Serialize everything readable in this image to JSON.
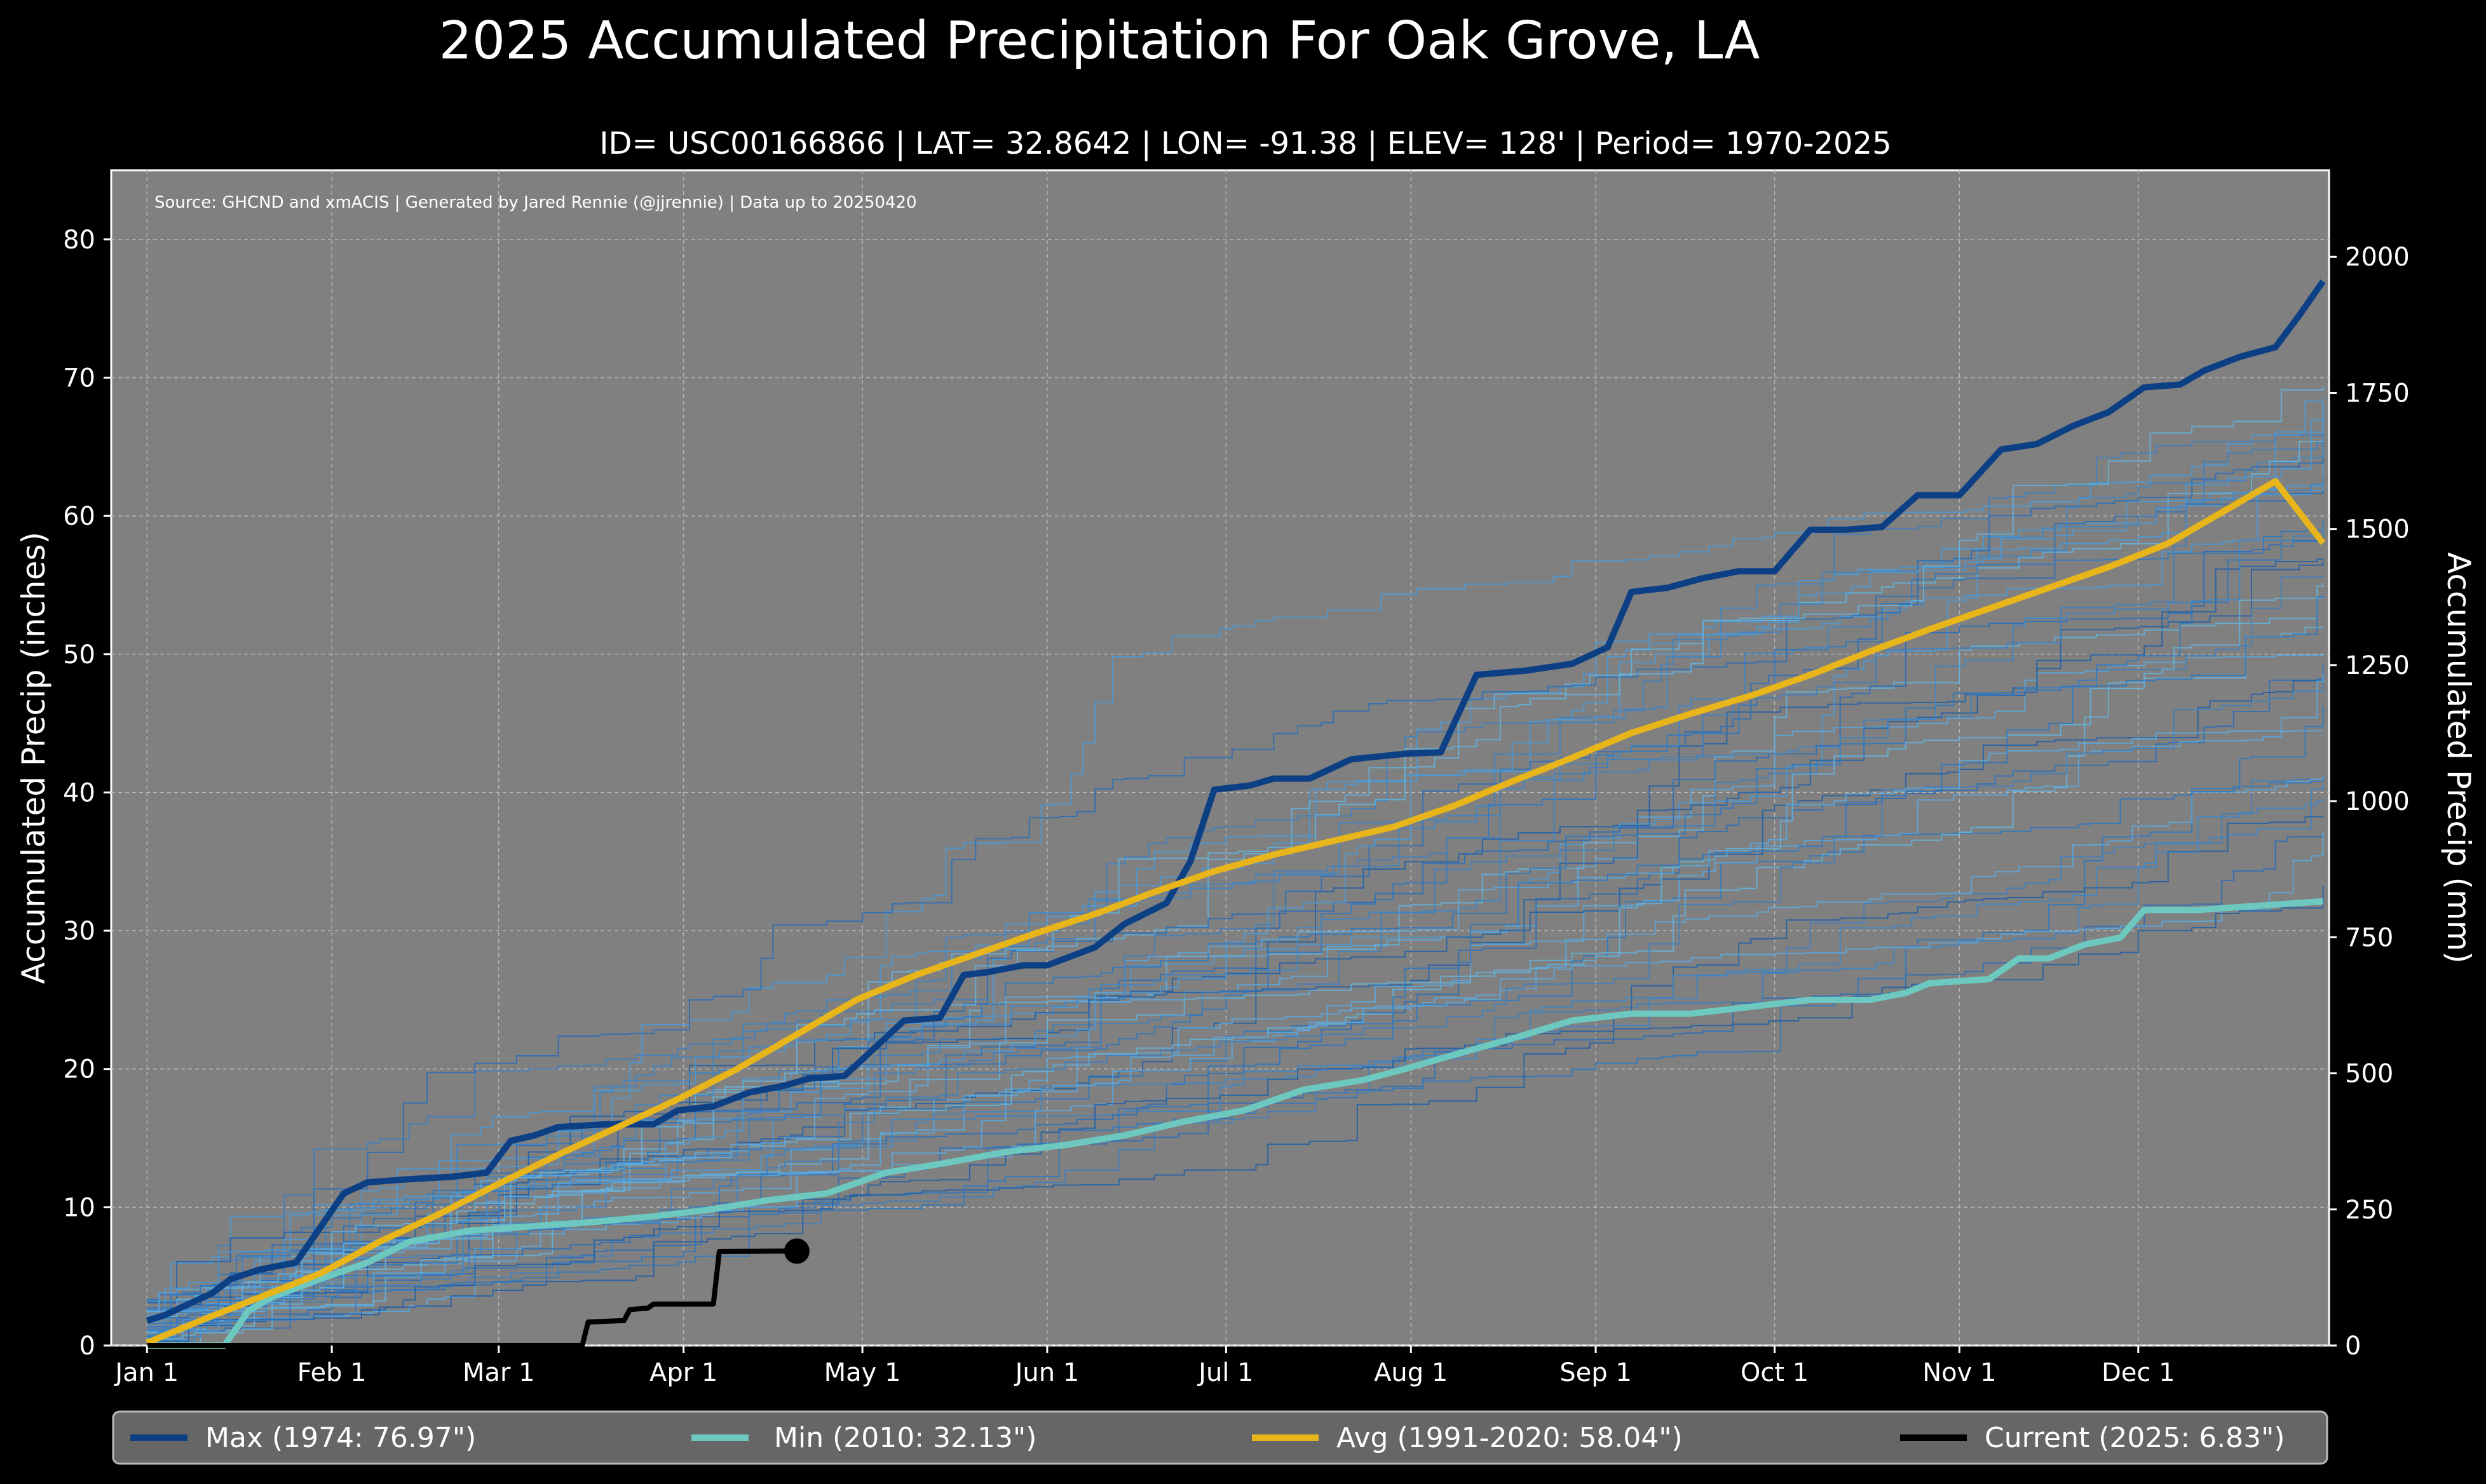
{
  "chart_data": {
    "type": "line",
    "title": "2025 Accumulated Precipitation For Oak Grove, LA",
    "subtitle": "ID= USC00166866 | LAT= 32.8642 | LON= -91.38 | ELEV= 128' | Period= 1970-2025",
    "source_note": "Source: GHCND and xmACIS | Generated by Jared Rennie (@jjrennie) | Data up to 20250420",
    "ylabel": "Accumulated Precip (inches)",
    "ylabel_right": "Accumulated Precip (mm)",
    "ylim": [
      0,
      85
    ],
    "ylim_right_mm": [
      0,
      2159
    ],
    "xlim_day_of_year": [
      -5,
      367
    ],
    "y_ticks": [
      0,
      10,
      20,
      30,
      40,
      50,
      60,
      70,
      80
    ],
    "y_ticks_right": [
      0,
      250,
      500,
      750,
      1000,
      1250,
      1500,
      1750,
      2000
    ],
    "x_ticks": [
      {
        "label": "Jan 1",
        "day": 1
      },
      {
        "label": "Feb 1",
        "day": 32
      },
      {
        "label": "Mar 1",
        "day": 60
      },
      {
        "label": "Apr 1",
        "day": 91
      },
      {
        "label": "May 1",
        "day": 121
      },
      {
        "label": "Jun 1",
        "day": 152
      },
      {
        "label": "Jul 1",
        "day": 182
      },
      {
        "label": "Aug 1",
        "day": 213
      },
      {
        "label": "Sep 1",
        "day": 244
      },
      {
        "label": "Oct 1",
        "day": 274
      },
      {
        "label": "Nov 1",
        "day": 305
      },
      {
        "label": "Dec 1",
        "day": 335
      }
    ],
    "grid": true,
    "background_years_count": 40,
    "series": [
      {
        "name": "Max",
        "legend": "Max (1974:  76.97\")",
        "color": "#0d3f85",
        "total": 76.97,
        "points": [
          [
            1,
            1.8
          ],
          [
            4,
            2.2
          ],
          [
            8,
            3.0
          ],
          [
            12,
            3.8
          ],
          [
            15,
            4.8
          ],
          [
            20,
            5.5
          ],
          [
            26,
            6.0
          ],
          [
            30,
            8.5
          ],
          [
            34,
            11.0
          ],
          [
            38,
            11.8
          ],
          [
            44,
            12.0
          ],
          [
            52,
            12.2
          ],
          [
            58,
            12.5
          ],
          [
            62,
            14.8
          ],
          [
            66,
            15.2
          ],
          [
            70,
            15.8
          ],
          [
            78,
            16.0
          ],
          [
            86,
            16.0
          ],
          [
            90,
            17.0
          ],
          [
            96,
            17.3
          ],
          [
            102,
            18.3
          ],
          [
            108,
            18.8
          ],
          [
            112,
            19.3
          ],
          [
            118,
            19.5
          ],
          [
            128,
            23.5
          ],
          [
            134,
            23.7
          ],
          [
            138,
            26.8
          ],
          [
            142,
            27.0
          ],
          [
            148,
            27.5
          ],
          [
            152,
            27.5
          ],
          [
            160,
            28.8
          ],
          [
            165,
            30.5
          ],
          [
            172,
            32.0
          ],
          [
            176,
            35.0
          ],
          [
            180,
            40.2
          ],
          [
            186,
            40.5
          ],
          [
            190,
            41.0
          ],
          [
            196,
            41.0
          ],
          [
            203,
            42.4
          ],
          [
            212,
            42.8
          ],
          [
            218,
            42.9
          ],
          [
            224,
            48.5
          ],
          [
            232,
            48.8
          ],
          [
            240,
            49.3
          ],
          [
            246,
            50.5
          ],
          [
            250,
            54.5
          ],
          [
            256,
            54.8
          ],
          [
            262,
            55.5
          ],
          [
            268,
            56.0
          ],
          [
            274,
            56.0
          ],
          [
            280,
            59.0
          ],
          [
            286,
            59.0
          ],
          [
            292,
            59.2
          ],
          [
            298,
            61.5
          ],
          [
            305,
            61.5
          ],
          [
            312,
            64.8
          ],
          [
            318,
            65.2
          ],
          [
            324,
            66.5
          ],
          [
            330,
            67.5
          ],
          [
            336,
            69.3
          ],
          [
            342,
            69.5
          ],
          [
            346,
            70.5
          ],
          [
            352,
            71.5
          ],
          [
            358,
            72.2
          ],
          [
            362,
            74.5
          ],
          [
            366,
            76.97
          ]
        ]
      },
      {
        "name": "Min",
        "legend": "Min (2010:  32.13\")",
        "color": "#6dc8c0",
        "total": 32.13,
        "points": [
          [
            1,
            0.0
          ],
          [
            8,
            0.0
          ],
          [
            14,
            0.0
          ],
          [
            18,
            2.5
          ],
          [
            22,
            3.5
          ],
          [
            30,
            4.8
          ],
          [
            38,
            6.0
          ],
          [
            45,
            7.5
          ],
          [
            55,
            8.3
          ],
          [
            65,
            8.6
          ],
          [
            75,
            8.9
          ],
          [
            85,
            9.3
          ],
          [
            95,
            9.8
          ],
          [
            105,
            10.5
          ],
          [
            115,
            11.0
          ],
          [
            125,
            12.5
          ],
          [
            135,
            13.2
          ],
          [
            145,
            14.0
          ],
          [
            155,
            14.5
          ],
          [
            165,
            15.2
          ],
          [
            175,
            16.2
          ],
          [
            185,
            17.0
          ],
          [
            195,
            18.5
          ],
          [
            205,
            19.2
          ],
          [
            212,
            20.0
          ],
          [
            220,
            21.0
          ],
          [
            230,
            22.2
          ],
          [
            240,
            23.5
          ],
          [
            250,
            24.0
          ],
          [
            260,
            24.0
          ],
          [
            270,
            24.5
          ],
          [
            280,
            25.0
          ],
          [
            290,
            25.0
          ],
          [
            296,
            25.5
          ],
          [
            300,
            26.2
          ],
          [
            310,
            26.5
          ],
          [
            315,
            28.0
          ],
          [
            320,
            28.0
          ],
          [
            326,
            29.0
          ],
          [
            332,
            29.5
          ],
          [
            336,
            31.5
          ],
          [
            345,
            31.5
          ],
          [
            355,
            31.8
          ],
          [
            366,
            32.13
          ]
        ]
      },
      {
        "name": "Avg",
        "legend": "Avg (1991-2020:  58.04\")",
        "color": "#e8b51a",
        "total": 58.04,
        "points": [
          [
            1,
            0.2
          ],
          [
            10,
            1.8
          ],
          [
            20,
            3.5
          ],
          [
            30,
            5.2
          ],
          [
            40,
            7.5
          ],
          [
            50,
            9.5
          ],
          [
            60,
            11.7
          ],
          [
            70,
            13.8
          ],
          [
            80,
            15.8
          ],
          [
            90,
            17.8
          ],
          [
            100,
            20.0
          ],
          [
            110,
            22.5
          ],
          [
            120,
            25.0
          ],
          [
            130,
            26.8
          ],
          [
            140,
            28.3
          ],
          [
            150,
            29.8
          ],
          [
            160,
            31.2
          ],
          [
            170,
            32.8
          ],
          [
            180,
            34.3
          ],
          [
            190,
            35.5
          ],
          [
            200,
            36.5
          ],
          [
            210,
            37.5
          ],
          [
            220,
            39.0
          ],
          [
            230,
            40.8
          ],
          [
            240,
            42.5
          ],
          [
            250,
            44.3
          ],
          [
            260,
            45.7
          ],
          [
            270,
            47.0
          ],
          [
            280,
            48.5
          ],
          [
            290,
            50.2
          ],
          [
            300,
            51.8
          ],
          [
            310,
            53.3
          ],
          [
            320,
            54.8
          ],
          [
            330,
            56.3
          ],
          [
            340,
            58.0
          ],
          [
            350,
            60.5
          ],
          [
            358,
            62.5
          ],
          [
            366,
            58.04
          ]
        ]
      },
      {
        "name": "Current",
        "legend": "Current (2025:   6.83\")",
        "color": "#000000",
        "total": 6.83,
        "points": [
          [
            1,
            0.0
          ],
          [
            30,
            0.0
          ],
          [
            60,
            0.0
          ],
          [
            74,
            0.0
          ],
          [
            75,
            1.7
          ],
          [
            81,
            1.8
          ],
          [
            82,
            2.6
          ],
          [
            85,
            2.7
          ],
          [
            86,
            3.0
          ],
          [
            96,
            3.0
          ],
          [
            97,
            6.8
          ],
          [
            110,
            6.83
          ]
        ]
      }
    ]
  },
  "legend": {
    "items": [
      {
        "label": "Max (1974:  76.97\")",
        "color": "#0d3f85"
      },
      {
        "label": "Min (2010:  32.13\")",
        "color": "#6dc8c0"
      },
      {
        "label": "Avg (1991-2020:  58.04\")",
        "color": "#e8b51a"
      },
      {
        "label": "Current (2025:   6.83\")",
        "color": "#000000"
      }
    ]
  },
  "colors": {
    "page_background": "#000000",
    "plot_background": "#808080",
    "legend_background": "#666666",
    "grid": "#b5b5b5"
  }
}
